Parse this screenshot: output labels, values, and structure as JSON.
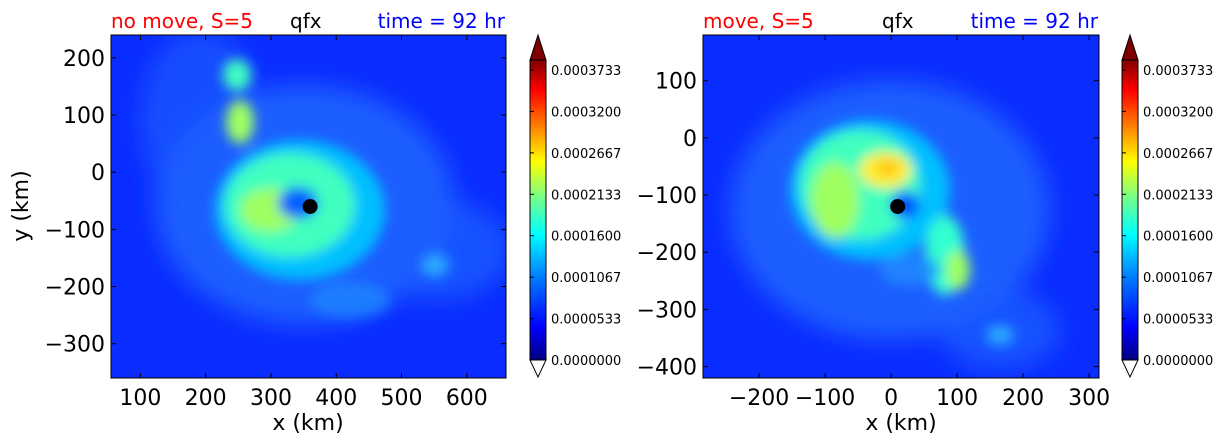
{
  "colorbar_levels": [
    "0.0003733",
    "0.0003200",
    "0.0002667",
    "0.0002133",
    "0.0001600",
    "0.0001067",
    "0.0000533",
    "0.0000000"
  ],
  "colors": {
    "left_title": "#ff0000",
    "right_title": "#0000ff",
    "center_title": "#000000",
    "field_background": "#0a2cff",
    "jet": [
      "#00007f",
      "#0000ff",
      "#007fff",
      "#00ffff",
      "#7fff7f",
      "#ffff00",
      "#ff7f00",
      "#ff0000",
      "#7f0000"
    ]
  },
  "chart_data": [
    {
      "type": "heatmap",
      "title_left": "no move, S=5",
      "title_center": "qfx",
      "title_right": "time = 92 hr",
      "xlabel": "x (km)",
      "ylabel": "y (km)",
      "xlim": [
        55,
        660
      ],
      "ylim": [
        -360,
        240
      ],
      "xticks": [
        "100",
        "200",
        "300",
        "400",
        "500",
        "600"
      ],
      "xtick_values": [
        100,
        200,
        300,
        400,
        500,
        600
      ],
      "yticks": [
        "200",
        "100",
        "0",
        "−100",
        "−200",
        "−300"
      ],
      "ytick_values": [
        200,
        100,
        0,
        -100,
        -200,
        -300
      ],
      "center_marker": {
        "x": 360,
        "y": -60
      },
      "features": [
        {
          "kind": "ring",
          "x": 335,
          "y": -60,
          "value": 0.00023
        },
        {
          "kind": "blob",
          "x": 245,
          "y": 90,
          "value": 0.00025
        },
        {
          "kind": "blob",
          "x": 240,
          "y": 160,
          "value": 0.00018
        },
        {
          "kind": "blob",
          "x": 565,
          "y": -150,
          "value": 0.00013
        }
      ],
      "colorbar": {
        "min": 0.0,
        "max": 0.0004,
        "extend": "both"
      }
    },
    {
      "type": "heatmap",
      "title_left": "move, S=5",
      "title_center": "qfx",
      "title_right": "time = 92 hr",
      "xlabel": "x (km)",
      "ylabel": "",
      "xlim": [
        -285,
        315
      ],
      "ylim": [
        -420,
        180
      ],
      "xticks": [
        "−200",
        "−100",
        "0",
        "100",
        "200",
        "300"
      ],
      "xtick_values": [
        -200,
        -100,
        0,
        100,
        200,
        300
      ],
      "yticks": [
        "100",
        "0",
        "−100",
        "−200",
        "−300",
        "−400"
      ],
      "ytick_values": [
        100,
        0,
        -100,
        -200,
        -300,
        -400
      ],
      "center_marker": {
        "x": 10,
        "y": -120
      },
      "features": [
        {
          "kind": "arc",
          "x": -50,
          "y": -90,
          "value": 0.00022
        },
        {
          "kind": "blob",
          "x": 0,
          "y": -60,
          "value": 0.00028
        },
        {
          "kind": "blob",
          "x": 90,
          "y": -250,
          "value": 0.00018
        },
        {
          "kind": "blob",
          "x": 160,
          "y": -350,
          "value": 0.00012
        }
      ],
      "colorbar": {
        "min": 0.0,
        "max": 0.0004,
        "extend": "both"
      }
    }
  ]
}
